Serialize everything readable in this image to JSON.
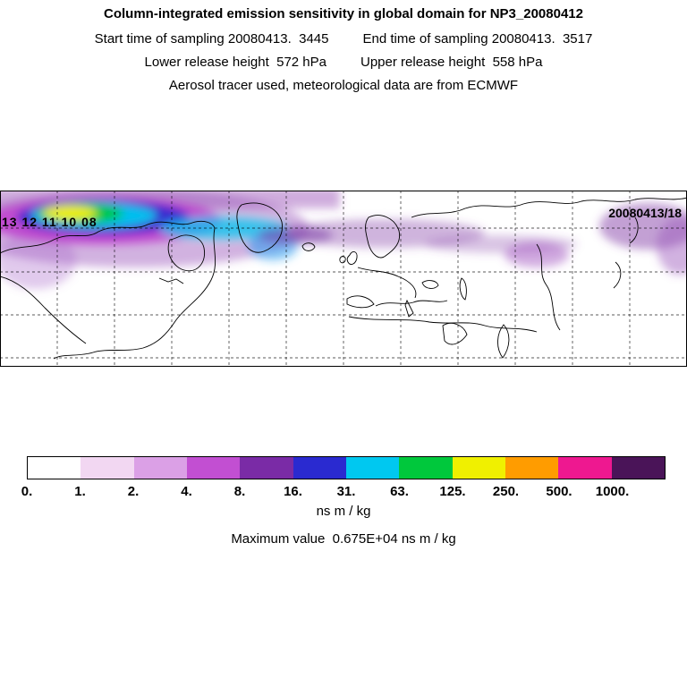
{
  "header": {
    "title": "Column-integrated emission sensitivity in global domain for NP3_20080412",
    "start_time_label": "Start time of sampling 20080413.  3445",
    "end_time_label": "End time of sampling 20080413.  3517",
    "lower_release_label": "Lower release height  572 hPa",
    "upper_release_label": "Upper release height  558 hPa",
    "tracer_line": "Aerosol tracer used, meteorological data are from ECMWF"
  },
  "map": {
    "left_track_times": "13 12 11 10 08",
    "right_track_label": "20080413/18"
  },
  "footer": {
    "units_label": "ns m / kg",
    "max_value_line": "Maximum value  0.675E+04 ns m / kg"
  },
  "chart_data": {
    "type": "heatmap",
    "title": "Column-integrated emission sensitivity in global domain for NP3_20080412",
    "variable": "Column-integrated emission sensitivity",
    "domain": "global",
    "units": "ns m / kg",
    "maximum_value": "0.675E+04",
    "start_time": "20080413.  3445",
    "end_time": "20080413.  3517",
    "lower_release_height_hPa": "572",
    "upper_release_height_hPa": "558",
    "tracer": "Aerosol",
    "met_data_source": "ECMWF",
    "colorbar_ticks": [
      "0.",
      "1.",
      "2.",
      "4.",
      "8.",
      "16.",
      "31.",
      "63.",
      "125.",
      "250.",
      "500.",
      "1000."
    ],
    "colorbar_colors": [
      "#ffffff",
      "#f2d7f2",
      "#dba0e6",
      "#c24fd2",
      "#7a2ba6",
      "#2a2ad0",
      "#00c8f0",
      "#00c83c",
      "#f0f000",
      "#ff9c00",
      "#ee1890",
      "#4a1458"
    ],
    "legend_position": "bottom",
    "grid": "dashed graticule"
  }
}
